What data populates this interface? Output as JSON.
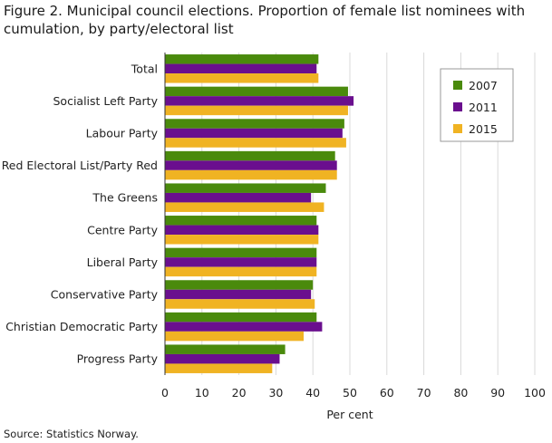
{
  "figure": {
    "title": "Figure 2. Municipal council elections. Proportion of female list nominees with cumulation, by party/electoral list",
    "source": "Source: Statistics Norway."
  },
  "chart_data": {
    "type": "bar",
    "orientation": "horizontal",
    "categories": [
      "Total",
      "Socialist Left Party",
      "Labour Party",
      "Red Electoral List/Party Red",
      "The Greens",
      "Centre Party",
      "Liberal Party",
      "Conservative Party",
      "Christian Democratic Party",
      "Progress Party"
    ],
    "series": [
      {
        "name": "2007",
        "color": "#4a8a0c",
        "values": [
          41.5,
          49.5,
          48.5,
          46.0,
          43.5,
          41.0,
          41.0,
          40.0,
          41.0,
          32.5
        ]
      },
      {
        "name": "2011",
        "color": "#6a0f8e",
        "values": [
          41.0,
          51.0,
          48.0,
          46.5,
          39.5,
          41.5,
          41.0,
          39.5,
          42.5,
          31.0
        ]
      },
      {
        "name": "2015",
        "color": "#f0b323",
        "values": [
          41.5,
          49.5,
          49.0,
          46.5,
          43.0,
          41.5,
          41.0,
          40.5,
          37.5,
          29.0
        ]
      }
    ],
    "xlabel": "Per cent",
    "ylabel": "",
    "xlim": [
      0,
      100
    ],
    "xticks": [
      0,
      10,
      20,
      30,
      40,
      50,
      60,
      70,
      80,
      90,
      100
    ],
    "grid": true,
    "legend_position": "top-right"
  }
}
